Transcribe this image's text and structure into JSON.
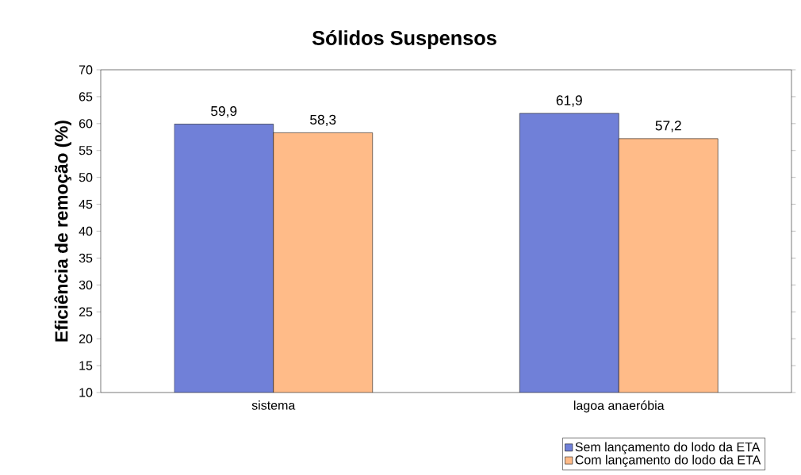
{
  "chart_data": {
    "type": "bar",
    "title": "Sólidos Suspensos",
    "ylabel": "Eficiência de remoção (%)",
    "categories": [
      "sistema",
      "lagoa anaeróbia"
    ],
    "series": [
      {
        "name": "Sem lançamento do lodo da ETA",
        "color": "#7080d8",
        "values": [
          59.9,
          61.9
        ],
        "value_labels": [
          "59,9",
          "61,9"
        ]
      },
      {
        "name": "Com lançamento do lodo da ETA",
        "color": "#ffbb88",
        "values": [
          58.3,
          57.2
        ],
        "value_labels": [
          "58,3",
          "57,2"
        ]
      }
    ],
    "ylim": [
      10,
      70
    ],
    "yticks": [
      10,
      15,
      20,
      25,
      30,
      35,
      40,
      45,
      50,
      55,
      60,
      65,
      70
    ],
    "legend": "bottom right",
    "grid": false
  }
}
